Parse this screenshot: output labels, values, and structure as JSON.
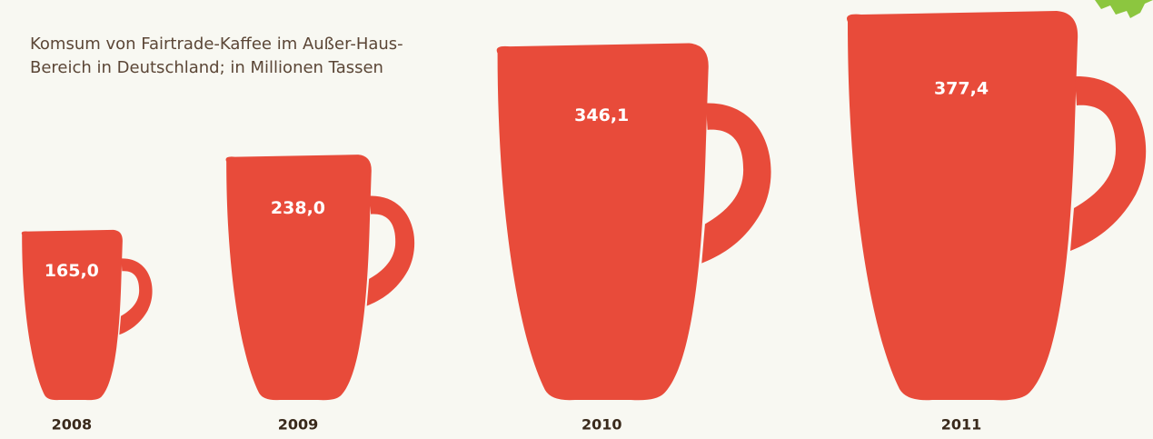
{
  "chart_data": {
    "type": "pictograph",
    "subtitle": [
      "Komsum von Fairtrade-Kaffee im Außer-Haus-",
      "Bereich in Deutschland; in Millionen Tassen"
    ],
    "categories": [
      "2008",
      "2009",
      "2010",
      "2011"
    ],
    "values": [
      165.0,
      238.0,
      346.1,
      377.4
    ],
    "value_labels": [
      "165,0",
      "238,0",
      "346,1",
      "377,4"
    ],
    "color": "#e84b3a"
  }
}
